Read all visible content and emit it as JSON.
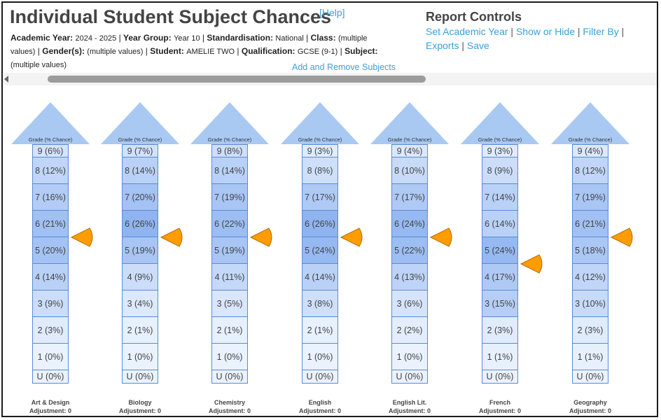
{
  "header": {
    "title": "Individual Student Subject Chances",
    "help_label": "[Help]",
    "add_remove_label": "Add and Remove Subjects"
  },
  "filters": {
    "academic_year_label": "Academic Year:",
    "academic_year_value": "2024 - 2025",
    "year_group_label": "Year Group:",
    "year_group_value": "Year 10",
    "standardisation_label": "Standardisation:",
    "standardisation_value": "National",
    "class_label": "Class:",
    "class_value": "(multiple values)",
    "gender_label": "Gender(s):",
    "gender_value": "(multiple values)",
    "student_label": "Student:",
    "student_value": "AMELIE TWO",
    "qualification_label": "Qualification:",
    "qualification_value": "GCSE (9-1)",
    "subject_label": "Subject:",
    "subject_value": "(multiple values)"
  },
  "report_controls": {
    "title": "Report Controls",
    "links": [
      "Set Academic Year",
      "Show or Hide",
      "Filter By",
      "Exports",
      "Save"
    ]
  },
  "arrow_label": "Grade (% Chance)",
  "adjustment_label": "Adjustment:",
  "colors": {
    "accent": "#3aa0d8",
    "cell_border": "#5a8ad6",
    "marker": "#ff9c00",
    "arrow_head": "#a9c9f2"
  },
  "subjects": [
    {
      "name": "Art & Design",
      "adjustment": "0",
      "marker_grade": "6",
      "grades": [
        {
          "g": "9",
          "pct": 6
        },
        {
          "g": "8",
          "pct": 12
        },
        {
          "g": "7",
          "pct": 16
        },
        {
          "g": "6",
          "pct": 21
        },
        {
          "g": "5",
          "pct": 20
        },
        {
          "g": "4",
          "pct": 14
        },
        {
          "g": "3",
          "pct": 9
        },
        {
          "g": "2",
          "pct": 3
        },
        {
          "g": "1",
          "pct": 0
        },
        {
          "g": "U",
          "pct": 0
        }
      ]
    },
    {
      "name": "Biology",
      "adjustment": "0",
      "marker_grade": "6",
      "grades": [
        {
          "g": "9",
          "pct": 7
        },
        {
          "g": "8",
          "pct": 14
        },
        {
          "g": "7",
          "pct": 20
        },
        {
          "g": "6",
          "pct": 26
        },
        {
          "g": "5",
          "pct": 19
        },
        {
          "g": "4",
          "pct": 9
        },
        {
          "g": "3",
          "pct": 4
        },
        {
          "g": "2",
          "pct": 1
        },
        {
          "g": "1",
          "pct": 0
        },
        {
          "g": "U",
          "pct": 0
        }
      ]
    },
    {
      "name": "Chemistry",
      "adjustment": "0",
      "marker_grade": "6",
      "grades": [
        {
          "g": "9",
          "pct": 8
        },
        {
          "g": "8",
          "pct": 14
        },
        {
          "g": "7",
          "pct": 19
        },
        {
          "g": "6",
          "pct": 22
        },
        {
          "g": "5",
          "pct": 19
        },
        {
          "g": "4",
          "pct": 11
        },
        {
          "g": "3",
          "pct": 5
        },
        {
          "g": "2",
          "pct": 1
        },
        {
          "g": "1",
          "pct": 0
        },
        {
          "g": "U",
          "pct": 0
        }
      ]
    },
    {
      "name": "English",
      "adjustment": "0",
      "marker_grade": "6",
      "grades": [
        {
          "g": "9",
          "pct": 3
        },
        {
          "g": "8",
          "pct": 8
        },
        {
          "g": "7",
          "pct": 17
        },
        {
          "g": "6",
          "pct": 26
        },
        {
          "g": "5",
          "pct": 24
        },
        {
          "g": "4",
          "pct": 14
        },
        {
          "g": "3",
          "pct": 8
        },
        {
          "g": "2",
          "pct": 1
        },
        {
          "g": "1",
          "pct": 0
        },
        {
          "g": "U",
          "pct": 0
        }
      ]
    },
    {
      "name": "English Lit.",
      "adjustment": "0",
      "marker_grade": "6",
      "grades": [
        {
          "g": "9",
          "pct": 4
        },
        {
          "g": "8",
          "pct": 10
        },
        {
          "g": "7",
          "pct": 17
        },
        {
          "g": "6",
          "pct": 24
        },
        {
          "g": "5",
          "pct": 22
        },
        {
          "g": "4",
          "pct": 13
        },
        {
          "g": "3",
          "pct": 6
        },
        {
          "g": "2",
          "pct": 2
        },
        {
          "g": "1",
          "pct": 0
        },
        {
          "g": "U",
          "pct": 0
        }
      ]
    },
    {
      "name": "French",
      "adjustment": "0",
      "marker_grade": "5",
      "grades": [
        {
          "g": "9",
          "pct": 3
        },
        {
          "g": "8",
          "pct": 9
        },
        {
          "g": "7",
          "pct": 14
        },
        {
          "g": "6",
          "pct": 14
        },
        {
          "g": "5",
          "pct": 24
        },
        {
          "g": "4",
          "pct": 17
        },
        {
          "g": "3",
          "pct": 15
        },
        {
          "g": "2",
          "pct": 3
        },
        {
          "g": "1",
          "pct": 1
        },
        {
          "g": "U",
          "pct": 0
        }
      ]
    },
    {
      "name": "Geography",
      "adjustment": "0",
      "marker_grade": "6",
      "grades": [
        {
          "g": "9",
          "pct": 4
        },
        {
          "g": "8",
          "pct": 12
        },
        {
          "g": "7",
          "pct": 19
        },
        {
          "g": "6",
          "pct": 21
        },
        {
          "g": "5",
          "pct": 18
        },
        {
          "g": "4",
          "pct": 12
        },
        {
          "g": "3",
          "pct": 10
        },
        {
          "g": "2",
          "pct": 3
        },
        {
          "g": "1",
          "pct": 1
        },
        {
          "g": "U",
          "pct": 0
        }
      ]
    }
  ]
}
